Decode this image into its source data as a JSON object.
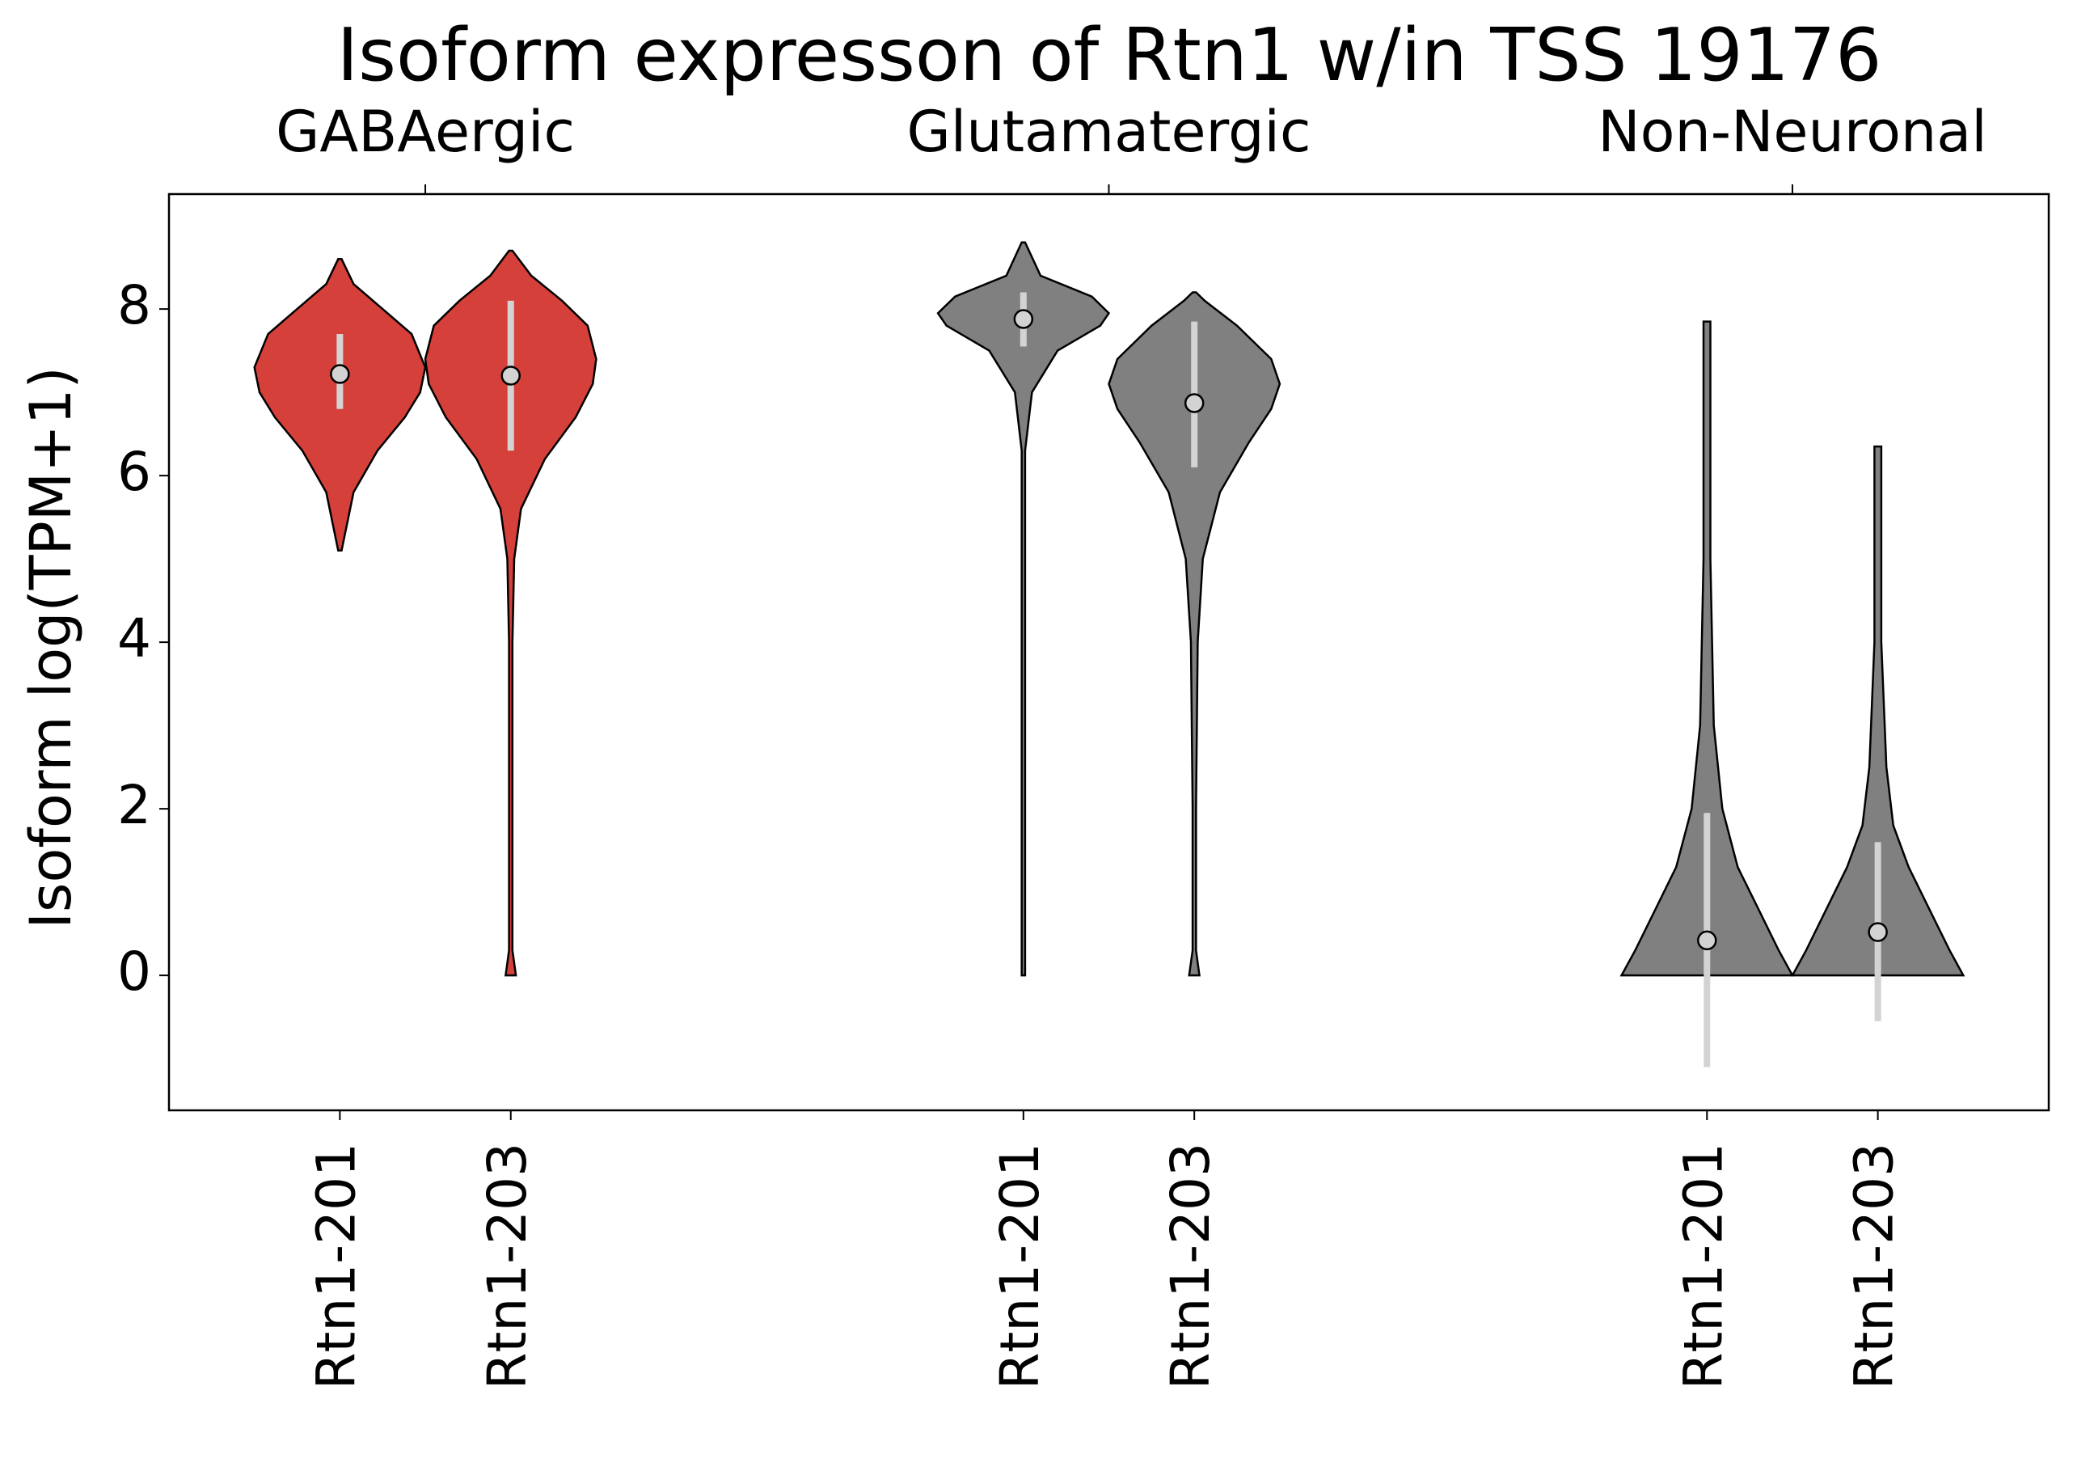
{
  "chart_data": {
    "type": "violin",
    "title": "Isoform expresson of Rtn1 w/in TSS 19176",
    "y_label": "Isoform log(TPM+1)",
    "ylim": [
      -1.62,
      9.38
    ],
    "yticks": [
      0,
      2,
      4,
      6,
      8
    ],
    "xlim": [
      -1,
      10
    ],
    "groups": [
      {
        "name": "GABAergic",
        "position": 0.5
      },
      {
        "name": "Glutamatergic",
        "position": 4.5
      },
      {
        "name": "Non-Neuronal",
        "position": 8.5
      }
    ],
    "violins": [
      {
        "label": "Rtn1-201",
        "position": 0,
        "color": "#d6403a",
        "median": 7.22,
        "iqr": [
          6.8,
          7.7
        ],
        "density_y": [
          5.1,
          5.8,
          6.3,
          6.7,
          7.0,
          7.3,
          7.7,
          8.0,
          8.3,
          8.6
        ],
        "density_w": [
          0.01,
          0.08,
          0.22,
          0.38,
          0.47,
          0.5,
          0.42,
          0.25,
          0.08,
          0.01
        ]
      },
      {
        "label": "Rtn1-203",
        "position": 1,
        "color": "#d6403a",
        "median": 7.2,
        "iqr": [
          6.3,
          8.1
        ],
        "density_y": [
          0,
          0.3,
          2,
          4,
          5,
          5.6,
          6.2,
          6.7,
          7.1,
          7.4,
          7.8,
          8.1,
          8.4,
          8.7
        ],
        "density_w": [
          0.03,
          0.01,
          0.01,
          0.01,
          0.02,
          0.06,
          0.2,
          0.38,
          0.48,
          0.5,
          0.45,
          0.3,
          0.12,
          0.01
        ]
      },
      {
        "label": "Rtn1-201",
        "position": 4,
        "color": "#808080",
        "median": 7.88,
        "iqr": [
          7.55,
          8.2
        ],
        "density_y": [
          0,
          0.5,
          4,
          6.3,
          7.0,
          7.5,
          7.8,
          7.95,
          8.15,
          8.4,
          8.8
        ],
        "density_w": [
          0.01,
          0.01,
          0.01,
          0.01,
          0.05,
          0.2,
          0.45,
          0.5,
          0.4,
          0.1,
          0.01
        ]
      },
      {
        "label": "Rtn1-203",
        "position": 5,
        "color": "#808080",
        "median": 6.87,
        "iqr": [
          6.1,
          7.85
        ],
        "density_y": [
          0,
          0.3,
          2,
          4,
          5,
          5.8,
          6.4,
          6.8,
          7.1,
          7.4,
          7.8,
          8.1,
          8.2
        ],
        "density_w": [
          0.03,
          0.01,
          0.01,
          0.02,
          0.05,
          0.15,
          0.32,
          0.45,
          0.5,
          0.45,
          0.25,
          0.06,
          0.01
        ]
      },
      {
        "label": "Rtn1-201",
        "position": 8,
        "color": "#808080",
        "median": 0.42,
        "iqr": [
          -1.1,
          1.95
        ],
        "density_y": [
          0,
          0.3,
          0.8,
          1.3,
          2,
          3,
          5,
          7.85
        ],
        "density_w": [
          0.5,
          0.42,
          0.3,
          0.18,
          0.09,
          0.04,
          0.02,
          0.02
        ]
      },
      {
        "label": "Rtn1-203",
        "position": 9,
        "color": "#808080",
        "median": 0.52,
        "iqr": [
          -0.55,
          1.6
        ],
        "density_y": [
          0,
          0.3,
          0.8,
          1.3,
          1.8,
          2.5,
          4,
          6.35
        ],
        "density_w": [
          0.5,
          0.42,
          0.3,
          0.18,
          0.09,
          0.05,
          0.02,
          0.02
        ]
      }
    ]
  }
}
